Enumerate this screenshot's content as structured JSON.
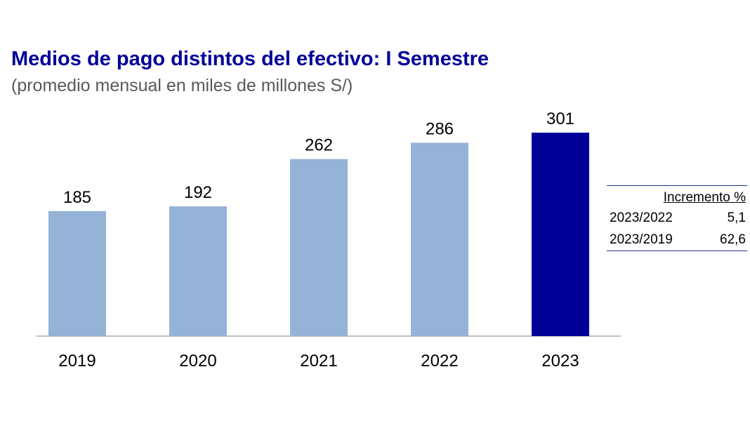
{
  "chart_data": {
    "type": "bar",
    "title": "Medios de pago distintos del efectivo: I Semestre",
    "subtitle": "(promedio mensual en miles de millones S/)",
    "categories": [
      "2019",
      "2020",
      "2021",
      "2022",
      "2023"
    ],
    "values": [
      185,
      192,
      262,
      286,
      301
    ],
    "data_labels": [
      "185",
      "192",
      "262",
      "286",
      "301"
    ],
    "ylim": [
      0,
      320
    ],
    "grid": false,
    "colors": [
      "#95b3d7",
      "#95b3d7",
      "#95b3d7",
      "#95b3d7",
      "#000099"
    ]
  },
  "table": {
    "header": "Incremento %",
    "rows": [
      {
        "label": "2023/2022",
        "value": "5,1"
      },
      {
        "label": "2023/2019",
        "value": "62,6"
      }
    ]
  },
  "colors": {
    "title": "#000099",
    "bar_default": "#95b3d7",
    "bar_highlight": "#000099",
    "axis": "#bfbfbf"
  }
}
